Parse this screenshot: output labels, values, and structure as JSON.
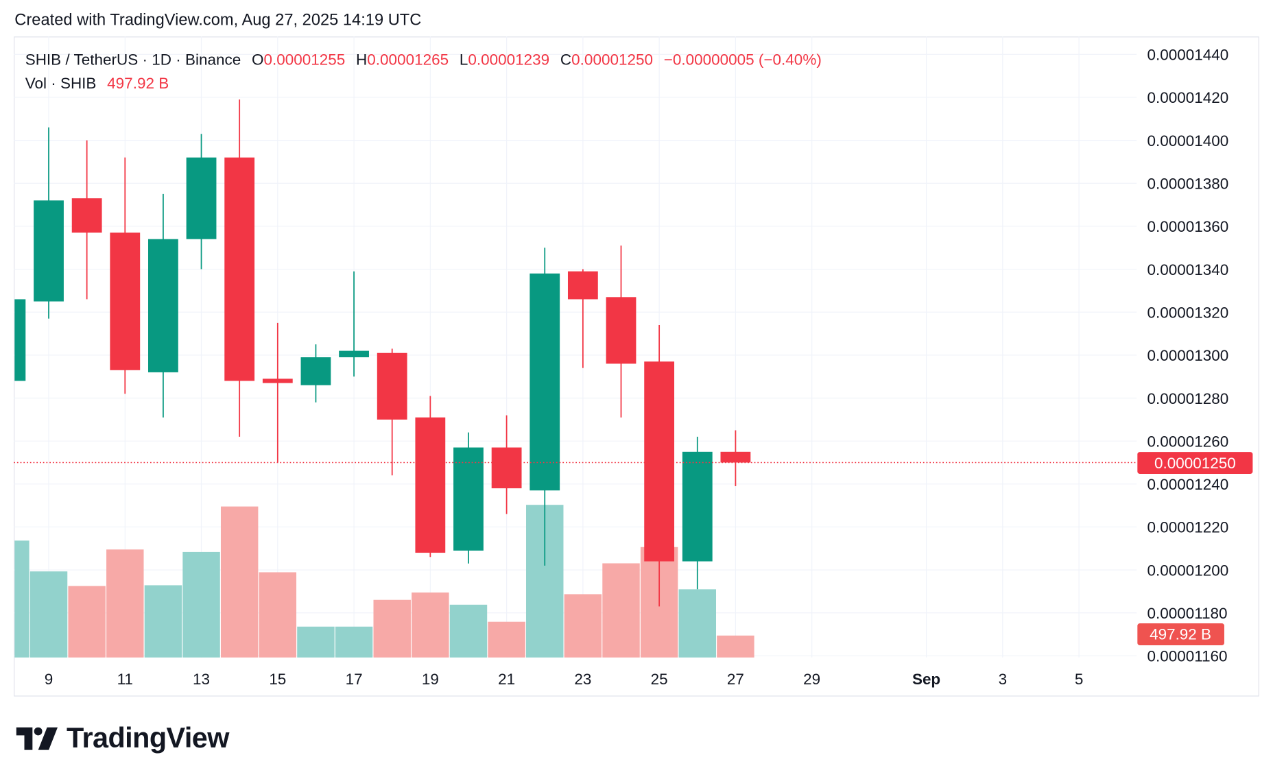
{
  "caption": "Created with TradingView.com, Aug 27, 2025 14:19 UTC",
  "legend": {
    "symbol": "SHIB / TetherUS · 1D · Binance",
    "o_label": "O",
    "o": "0.00001255",
    "h_label": "H",
    "h": "0.00001265",
    "l_label": "L",
    "l": "0.00001239",
    "c_label": "C",
    "c": "0.00001250",
    "change": "−0.00000005 (−0.40%)",
    "vol_label": "Vol · SHIB",
    "vol": "497.92 B"
  },
  "price_badge": "0.00001250",
  "volume_badge": "497.92 B",
  "logo_text": "TradingView",
  "colors": {
    "up": "#089981",
    "down": "#f23645",
    "vol_up": "#92d2cc",
    "vol_down": "#f7a9a7"
  },
  "chart_data": {
    "type": "candlestick",
    "price_unit_note": "prices ×1e-8",
    "yticks": [
      "0.00001160",
      "0.00001180",
      "0.00001200",
      "0.00001220",
      "0.00001240",
      "0.00001260",
      "0.00001280",
      "0.00001300",
      "0.00001320",
      "0.00001340",
      "0.00001360",
      "0.00001380",
      "0.00001400",
      "0.00001420",
      "0.00001440"
    ],
    "ylim": [
      1160,
      1440
    ],
    "xticks": [
      {
        "label": "9",
        "day": 9
      },
      {
        "label": "11",
        "day": 11
      },
      {
        "label": "13",
        "day": 13
      },
      {
        "label": "15",
        "day": 15
      },
      {
        "label": "17",
        "day": 17
      },
      {
        "label": "19",
        "day": 19
      },
      {
        "label": "21",
        "day": 21
      },
      {
        "label": "23",
        "day": 23
      },
      {
        "label": "25",
        "day": 25
      },
      {
        "label": "27",
        "day": 27
      },
      {
        "label": "29",
        "day": 29
      },
      {
        "label": "Sep",
        "day": 32
      },
      {
        "label": "3",
        "day": 34
      },
      {
        "label": "5",
        "day": 36
      }
    ],
    "last_price": 1250,
    "candles": [
      {
        "date": "Aug 8",
        "o": 1288,
        "h": 1330,
        "l": 1285,
        "c": 1326,
        "v": 2655
      },
      {
        "date": "Aug 9",
        "o": 1325,
        "h": 1406,
        "l": 1317,
        "c": 1372,
        "v": 1955
      },
      {
        "date": "Aug 10",
        "o": 1373,
        "h": 1400,
        "l": 1326,
        "c": 1357,
        "v": 1623
      },
      {
        "date": "Aug 11",
        "o": 1357,
        "h": 1392,
        "l": 1282,
        "c": 1293,
        "v": 2453
      },
      {
        "date": "Aug 12",
        "o": 1292,
        "h": 1375,
        "l": 1271,
        "c": 1354,
        "v": 1641
      },
      {
        "date": "Aug 13",
        "o": 1354,
        "h": 1403,
        "l": 1340,
        "c": 1392,
        "v": 2397
      },
      {
        "date": "Aug 14",
        "o": 1392,
        "h": 1419,
        "l": 1262,
        "c": 1288,
        "v": 3430
      },
      {
        "date": "Aug 15",
        "o": 1289,
        "h": 1315,
        "l": 1250,
        "c": 1287,
        "v": 1936
      },
      {
        "date": "Aug 16",
        "o": 1286,
        "h": 1305,
        "l": 1278,
        "c": 1299,
        "v": 701
      },
      {
        "date": "Aug 17",
        "o": 1299,
        "h": 1339,
        "l": 1290,
        "c": 1302,
        "v": 701
      },
      {
        "date": "Aug 18",
        "o": 1301,
        "h": 1303,
        "l": 1244,
        "c": 1270,
        "v": 1309
      },
      {
        "date": "Aug 19",
        "o": 1271,
        "h": 1281,
        "l": 1206,
        "c": 1208,
        "v": 1475
      },
      {
        "date": "Aug 20",
        "o": 1209,
        "h": 1264,
        "l": 1203,
        "c": 1257,
        "v": 1199
      },
      {
        "date": "Aug 21",
        "o": 1257,
        "h": 1272,
        "l": 1226,
        "c": 1238,
        "v": 811
      },
      {
        "date": "Aug 22",
        "o": 1237,
        "h": 1350,
        "l": 1202,
        "c": 1338,
        "v": 3467
      },
      {
        "date": "Aug 23",
        "o": 1339,
        "h": 1340,
        "l": 1294,
        "c": 1326,
        "v": 1438
      },
      {
        "date": "Aug 24",
        "o": 1327,
        "h": 1351,
        "l": 1271,
        "c": 1296,
        "v": 2139
      },
      {
        "date": "Aug 25",
        "o": 1297,
        "h": 1314,
        "l": 1183,
        "c": 1204,
        "v": 2508
      },
      {
        "date": "Aug 26",
        "o": 1204,
        "h": 1262,
        "l": 1191,
        "c": 1255,
        "v": 1549
      },
      {
        "date": "Aug 27",
        "o": 1255,
        "h": 1265,
        "l": 1239,
        "c": 1250,
        "v": 497.92
      }
    ],
    "volume_unit": "B"
  }
}
